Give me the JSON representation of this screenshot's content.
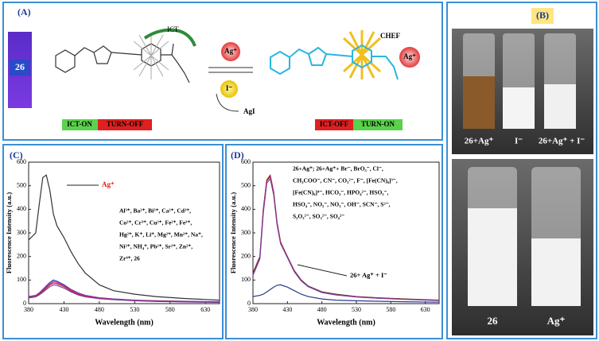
{
  "panel_a": {
    "label": "(A)",
    "compound": "26",
    "ict": "ICT",
    "reagent": "Ag⁺",
    "iodide": "I⁻",
    "precipitate": "AgI",
    "chef": "CHEF",
    "ag_in_complex": "Ag⁺",
    "left_state": [
      "ICT-ON",
      "TURN-OFF"
    ],
    "right_state": [
      "ICT-OFF",
      "TURN-ON"
    ]
  },
  "panel_b": {
    "label": "(B)",
    "top_vials": [
      "26+Ag⁺",
      "I⁻",
      "26+Ag⁺ + I⁻"
    ],
    "bottom_vials": [
      "26",
      "Ag⁺"
    ]
  },
  "chart_data": [
    {
      "type": "line",
      "label": "(C)",
      "xlabel": "Wavelength (nm)",
      "ylabel": "Fluorescence Intensity (a.u.)",
      "xlim": [
        380,
        650
      ],
      "ylim": [
        0,
        600
      ],
      "xticks": [
        380,
        430,
        480,
        530,
        580,
        630
      ],
      "yticks": [
        0,
        100,
        200,
        300,
        400,
        500,
        600
      ],
      "ag_label": "Ag⁺",
      "ion_list": [
        "Al³⁺, Ba²⁺, Bi³⁺, Ca²⁺, Cd²⁺,",
        "Co²⁺, Cr³⁺, Cu²⁺, Fe²⁺, Fe³⁺,",
        "Hg²⁺, K⁺, Li⁺, Mg²⁺, Mn²⁺, Na⁺,",
        "Ni²⁺, NH₄⁺, Pb²⁺, Sr²⁺, Zn²⁺,",
        "Zr⁴⁺, 26"
      ],
      "x": [
        380,
        390,
        395,
        400,
        405,
        410,
        415,
        420,
        430,
        440,
        450,
        460,
        480,
        500,
        530,
        560,
        600,
        650
      ],
      "series": [
        {
          "color": "#333333",
          "values": [
            270,
            300,
            420,
            535,
            545,
            480,
            380,
            330,
            280,
            220,
            170,
            130,
            80,
            55,
            40,
            30,
            22,
            15
          ]
        },
        {
          "color": "#2a3aa8",
          "values": [
            30,
            35,
            45,
            60,
            75,
            90,
            100,
            95,
            80,
            60,
            45,
            35,
            25,
            20,
            15,
            12,
            10,
            8
          ]
        },
        {
          "color": "#d62aa0",
          "values": [
            28,
            33,
            42,
            56,
            70,
            84,
            94,
            90,
            76,
            57,
            43,
            33,
            24,
            19,
            14,
            11,
            9,
            7
          ]
        },
        {
          "color": "#c0282f",
          "values": [
            26,
            31,
            40,
            52,
            66,
            80,
            88,
            85,
            72,
            54,
            40,
            31,
            22,
            18,
            13,
            10,
            8,
            6
          ]
        },
        {
          "color": "#7a3aa0",
          "values": [
            24,
            29,
            37,
            48,
            60,
            72,
            80,
            78,
            66,
            50,
            37,
            29,
            21,
            17,
            12,
            9,
            7,
            5
          ]
        }
      ]
    },
    {
      "type": "line",
      "label": "(D)",
      "xlabel": "Wavelength (nm)",
      "ylabel": "Fluorescence Intensity (a.u.)",
      "xlim": [
        380,
        650
      ],
      "ylim": [
        0,
        600
      ],
      "xticks": [
        380,
        430,
        480,
        530,
        580,
        630
      ],
      "yticks": [
        0,
        100,
        200,
        300,
        400,
        500,
        600
      ],
      "anion_list": [
        "26+Ag⁺; 26+Ag⁺+ Br⁻, BrO₃⁻, Cl⁻,",
        "CH₃COO⁻, CN⁻, CO₃²⁻, F⁻, [Fe(CN)₆]³⁻,",
        "[Fe(CN)₆]⁴⁻, HCO₃⁻, HPO₄²⁻, HSO₃⁻,",
        "HSO₄⁻, NO₂⁻, NO₃⁻, OH⁻, SCN⁻, S²⁻,",
        "S₂O₃²⁻, SO₃²⁻, SO₄²⁻"
      ],
      "iodide_label": "26+ Ag⁺ + I⁻",
      "x": [
        380,
        390,
        395,
        400,
        405,
        410,
        415,
        420,
        430,
        440,
        450,
        460,
        480,
        500,
        530,
        560,
        600,
        650
      ],
      "series": [
        {
          "color": "#333333",
          "values": [
            130,
            200,
            400,
            520,
            540,
            470,
            340,
            260,
            200,
            140,
            100,
            75,
            50,
            40,
            30,
            25,
            20,
            15
          ]
        },
        {
          "color": "#c0282f",
          "values": [
            125,
            195,
            395,
            525,
            545,
            475,
            345,
            262,
            198,
            138,
            98,
            73,
            48,
            38,
            29,
            24,
            19,
            14
          ]
        },
        {
          "color": "#7a3aa0",
          "values": [
            120,
            190,
            385,
            510,
            530,
            462,
            335,
            255,
            195,
            135,
            96,
            72,
            47,
            37,
            28,
            23,
            18,
            13
          ]
        },
        {
          "color": "#2a3a8a",
          "values": [
            30,
            35,
            40,
            50,
            60,
            70,
            78,
            80,
            70,
            55,
            40,
            30,
            20,
            15,
            12,
            10,
            8,
            6
          ]
        }
      ]
    }
  ]
}
